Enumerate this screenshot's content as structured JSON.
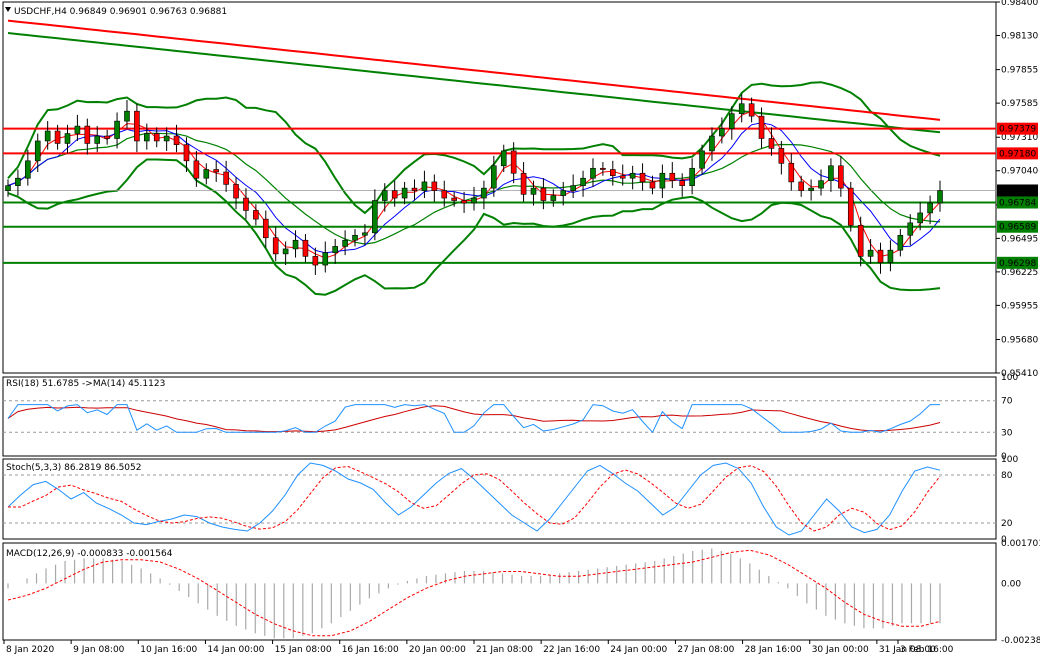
{
  "chart_data": [
    {
      "type": "candlestick",
      "title": "USDCHF,H4  0.96849 0.96901 0.96763 0.96881",
      "ylim": [
        0.9541,
        0.984
      ],
      "price_ticks": [
        "0.98400",
        "0.98130",
        "0.97855",
        "0.97585",
        "0.97310",
        "0.97040",
        "0.96765",
        "0.96495",
        "0.96225",
        "0.95955",
        "0.95680",
        "0.95410"
      ],
      "levels": [
        {
          "label": "0.97379",
          "value": 0.97379,
          "color": "#ff0000"
        },
        {
          "label": "0.97180",
          "value": 0.9718,
          "color": "#ff0000"
        },
        {
          "label": "0.96881",
          "value": 0.96881,
          "color": "#000000"
        },
        {
          "label": "0.96784",
          "value": 0.96784,
          "color": "#008000"
        },
        {
          "label": "0.96589",
          "value": 0.96589,
          "color": "#008000"
        },
        {
          "label": "0.96298",
          "value": 0.96298,
          "color": "#008000"
        }
      ],
      "close_path": [
        0.9692,
        0.9698,
        0.9712,
        0.9728,
        0.9736,
        0.9726,
        0.9734,
        0.974,
        0.9726,
        0.9732,
        0.973,
        0.9744,
        0.9752,
        0.9728,
        0.9734,
        0.9728,
        0.9732,
        0.9725,
        0.9712,
        0.9698,
        0.9705,
        0.9703,
        0.9693,
        0.9682,
        0.9672,
        0.9665,
        0.965,
        0.9637,
        0.9641,
        0.9648,
        0.9635,
        0.9628,
        0.9638,
        0.9643,
        0.9648,
        0.9652,
        0.9654,
        0.968,
        0.9688,
        0.9682,
        0.969,
        0.9688,
        0.9695,
        0.9688,
        0.9682,
        0.968,
        0.9678,
        0.9682,
        0.969,
        0.9708,
        0.972,
        0.9702,
        0.9685,
        0.969,
        0.968,
        0.9684,
        0.9688,
        0.9692,
        0.9698,
        0.9706,
        0.9705,
        0.97,
        0.9698,
        0.9702,
        0.9695,
        0.969,
        0.9702,
        0.9696,
        0.9692,
        0.9706,
        0.972,
        0.9732,
        0.9738,
        0.975,
        0.9758,
        0.9748,
        0.973,
        0.9722,
        0.971,
        0.9695,
        0.9688,
        0.969,
        0.9696,
        0.9708,
        0.969,
        0.966,
        0.9635,
        0.964,
        0.963,
        0.964,
        0.9652,
        0.9662,
        0.967,
        0.9678,
        0.9688
      ]
    },
    {
      "type": "line",
      "title": "RSI(18) 51.6785  ->MA(14) 45.1123",
      "ylim": [
        0,
        100
      ],
      "ticks": [
        "100",
        "70",
        "30",
        "0"
      ]
    },
    {
      "type": "line",
      "title": "Stoch(5,3,3) 86.2819 86.5052",
      "ylim": [
        0,
        100
      ],
      "ticks": [
        "100",
        "80",
        "20",
        "0"
      ],
      "k_path": [
        40,
        55,
        68,
        72,
        62,
        50,
        58,
        45,
        38,
        30,
        20,
        18,
        22,
        25,
        30,
        28,
        20,
        15,
        12,
        10,
        20,
        35,
        55,
        80,
        95,
        92,
        85,
        75,
        70,
        62,
        45,
        30,
        40,
        55,
        70,
        82,
        88,
        75,
        60,
        45,
        30,
        20,
        10,
        25,
        45,
        65,
        85,
        92,
        82,
        70,
        60,
        45,
        30,
        40,
        60,
        80,
        92,
        95,
        88,
        70,
        40,
        15,
        5,
        10,
        30,
        50,
        35,
        15,
        8,
        12,
        30,
        60,
        85,
        90,
        86
      ]
    },
    {
      "type": "bar",
      "title": "MACD(12,26,9) -0.000833 -0.001564",
      "ylim": [
        -0.002382,
        0.001701
      ],
      "ticks": [
        "0.001701",
        "0.00",
        "-0.002382"
      ],
      "signal_path": [
        -0.0007,
        -0.0005,
        -0.0002,
        0.0002,
        0.0006,
        0.0009,
        0.001,
        0.001,
        0.0009,
        0.0006,
        0.0002,
        -0.0003,
        -0.0008,
        -0.0013,
        -0.0017,
        -0.002,
        -0.0022,
        -0.0022,
        -0.002,
        -0.0016,
        -0.0011,
        -0.0006,
        -0.0002,
        0.0001,
        0.0003,
        0.0004,
        0.0005,
        0.0005,
        0.0004,
        0.0003,
        0.0003,
        0.0004,
        0.0005,
        0.0006,
        0.0007,
        0.0008,
        0.0009,
        0.0011,
        0.0013,
        0.0014,
        0.0012,
        0.0008,
        0.0003,
        -0.0002,
        -0.0008,
        -0.0013,
        -0.0016,
        -0.0018,
        -0.0018,
        -0.0016
      ]
    }
  ],
  "x_labels": [
    "8 Jan 2020",
    "9 Jan 08:00",
    "10 Jan 16:00",
    "14 Jan 00:00",
    "15 Jan 08:00",
    "16 Jan 16:00",
    "20 Jan 00:00",
    "21 Jan 08:00",
    "22 Jan 16:00",
    "24 Jan 00:00",
    "27 Jan 08:00",
    "28 Jan 16:00",
    "30 Jan 00:00",
    "31 Jan 08:00",
    "3 Feb 16:00"
  ],
  "colors": {
    "bull": "#008000",
    "bear": "#ff0000",
    "bands": "#008000",
    "ma_red": "#ff0000",
    "ma_blue": "#0000ff",
    "rsi": "#1e90ff",
    "rsi_ma": "#cc0000",
    "stoch_k": "#1e90ff",
    "stoch_d": "#ff0000",
    "macd_hist": "#a9a9a9"
  }
}
